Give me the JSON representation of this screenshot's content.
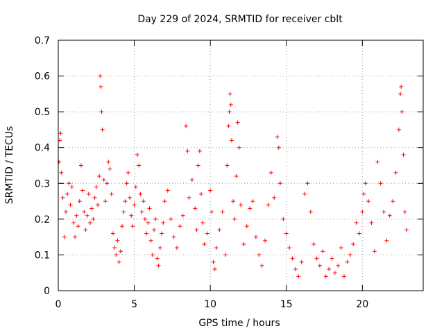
{
  "chart_data": {
    "type": "scatter",
    "title": "Day 229 of 2024, SRMTID for receiver cblt",
    "xlabel": "GPS time / hours",
    "ylabel": "SRMTID / TECUs",
    "xlim": [
      0,
      24
    ],
    "ylim": [
      0,
      0.7
    ],
    "x_ticks": [
      0,
      5,
      10,
      15,
      20
    ],
    "x_tick_labels": [
      "0",
      "5",
      "10",
      "15",
      "20"
    ],
    "y_ticks": [
      0,
      0.1,
      0.2,
      0.3,
      0.4,
      0.5,
      0.6,
      0.7
    ],
    "y_tick_labels": [
      "0",
      "0.1",
      "0.2",
      "0.3",
      "0.4",
      "0.5",
      "0.6",
      "0.7"
    ],
    "grid": true,
    "marker": "+",
    "color": "#ff0000",
    "series": [
      {
        "name": "cblt",
        "points": [
          [
            0.05,
            0.36
          ],
          [
            0.1,
            0.42
          ],
          [
            0.15,
            0.44
          ],
          [
            0.2,
            0.33
          ],
          [
            0.3,
            0.26
          ],
          [
            0.4,
            0.15
          ],
          [
            0.5,
            0.22
          ],
          [
            0.6,
            0.27
          ],
          [
            0.7,
            0.3
          ],
          [
            0.8,
            0.24
          ],
          [
            0.9,
            0.29
          ],
          [
            1.0,
            0.19
          ],
          [
            1.1,
            0.15
          ],
          [
            1.2,
            0.21
          ],
          [
            1.3,
            0.18
          ],
          [
            1.4,
            0.25
          ],
          [
            1.5,
            0.35
          ],
          [
            1.6,
            0.28
          ],
          [
            1.7,
            0.22
          ],
          [
            1.8,
            0.17
          ],
          [
            1.9,
            0.21
          ],
          [
            2.0,
            0.27
          ],
          [
            2.1,
            0.19
          ],
          [
            2.2,
            0.23
          ],
          [
            2.3,
            0.2
          ],
          [
            2.4,
            0.26
          ],
          [
            2.5,
            0.29
          ],
          [
            2.6,
            0.24
          ],
          [
            2.7,
            0.32
          ],
          [
            2.75,
            0.6
          ],
          [
            2.8,
            0.57
          ],
          [
            2.85,
            0.5
          ],
          [
            2.9,
            0.45
          ],
          [
            3.0,
            0.31
          ],
          [
            3.1,
            0.25
          ],
          [
            3.2,
            0.3
          ],
          [
            3.3,
            0.36
          ],
          [
            3.4,
            0.34
          ],
          [
            3.5,
            0.27
          ],
          [
            3.6,
            0.16
          ],
          [
            3.7,
            0.12
          ],
          [
            3.8,
            0.1
          ],
          [
            3.9,
            0.14
          ],
          [
            4.0,
            0.08
          ],
          [
            4.1,
            0.11
          ],
          [
            4.2,
            0.18
          ],
          [
            4.3,
            0.22
          ],
          [
            4.4,
            0.25
          ],
          [
            4.5,
            0.3
          ],
          [
            4.6,
            0.33
          ],
          [
            4.7,
            0.26
          ],
          [
            4.8,
            0.21
          ],
          [
            4.9,
            0.18
          ],
          [
            5.0,
            0.24
          ],
          [
            5.1,
            0.29
          ],
          [
            5.2,
            0.38
          ],
          [
            5.3,
            0.35
          ],
          [
            5.4,
            0.27
          ],
          [
            5.5,
            0.22
          ],
          [
            5.6,
            0.25
          ],
          [
            5.7,
            0.2
          ],
          [
            5.8,
            0.16
          ],
          [
            5.9,
            0.19
          ],
          [
            6.0,
            0.23
          ],
          [
            6.1,
            0.14
          ],
          [
            6.2,
            0.1
          ],
          [
            6.3,
            0.17
          ],
          [
            6.4,
            0.2
          ],
          [
            6.5,
            0.09
          ],
          [
            6.6,
            0.07
          ],
          [
            6.7,
            0.12
          ],
          [
            6.8,
            0.16
          ],
          [
            6.9,
            0.19
          ],
          [
            7.0,
            0.25
          ],
          [
            7.2,
            0.28
          ],
          [
            7.4,
            0.2
          ],
          [
            7.6,
            0.15
          ],
          [
            7.8,
            0.12
          ],
          [
            8.0,
            0.18
          ],
          [
            8.2,
            0.21
          ],
          [
            8.4,
            0.46
          ],
          [
            8.5,
            0.39
          ],
          [
            8.6,
            0.26
          ],
          [
            8.8,
            0.31
          ],
          [
            9.0,
            0.23
          ],
          [
            9.1,
            0.17
          ],
          [
            9.2,
            0.35
          ],
          [
            9.3,
            0.39
          ],
          [
            9.4,
            0.27
          ],
          [
            9.5,
            0.19
          ],
          [
            9.6,
            0.13
          ],
          [
            9.8,
            0.16
          ],
          [
            10.0,
            0.28
          ],
          [
            10.1,
            0.22
          ],
          [
            10.2,
            0.08
          ],
          [
            10.3,
            0.06
          ],
          [
            10.4,
            0.12
          ],
          [
            10.6,
            0.17
          ],
          [
            10.8,
            0.22
          ],
          [
            11.0,
            0.1
          ],
          [
            11.1,
            0.35
          ],
          [
            11.2,
            0.46
          ],
          [
            11.25,
            0.5
          ],
          [
            11.3,
            0.55
          ],
          [
            11.35,
            0.52
          ],
          [
            11.4,
            0.42
          ],
          [
            11.5,
            0.25
          ],
          [
            11.6,
            0.2
          ],
          [
            11.7,
            0.32
          ],
          [
            11.8,
            0.47
          ],
          [
            11.9,
            0.4
          ],
          [
            12.0,
            0.24
          ],
          [
            12.2,
            0.13
          ],
          [
            12.4,
            0.18
          ],
          [
            12.6,
            0.23
          ],
          [
            12.8,
            0.25
          ],
          [
            13.0,
            0.15
          ],
          [
            13.2,
            0.1
          ],
          [
            13.4,
            0.07
          ],
          [
            13.6,
            0.14
          ],
          [
            13.8,
            0.24
          ],
          [
            14.0,
            0.33
          ],
          [
            14.2,
            0.26
          ],
          [
            14.4,
            0.43
          ],
          [
            14.5,
            0.4
          ],
          [
            14.6,
            0.3
          ],
          [
            14.8,
            0.2
          ],
          [
            15.0,
            0.16
          ],
          [
            15.2,
            0.12
          ],
          [
            15.4,
            0.09
          ],
          [
            15.6,
            0.06
          ],
          [
            15.8,
            0.04
          ],
          [
            16.0,
            0.08
          ],
          [
            16.2,
            0.27
          ],
          [
            16.4,
            0.3
          ],
          [
            16.6,
            0.22
          ],
          [
            16.8,
            0.13
          ],
          [
            17.0,
            0.09
          ],
          [
            17.2,
            0.07
          ],
          [
            17.4,
            0.11
          ],
          [
            17.6,
            0.04
          ],
          [
            17.8,
            0.06
          ],
          [
            18.0,
            0.09
          ],
          [
            18.2,
            0.05
          ],
          [
            18.4,
            0.07
          ],
          [
            18.6,
            0.12
          ],
          [
            18.8,
            0.04
          ],
          [
            19.0,
            0.08
          ],
          [
            19.2,
            0.1
          ],
          [
            19.4,
            0.13
          ],
          [
            19.6,
            0.19
          ],
          [
            19.8,
            0.16
          ],
          [
            20.0,
            0.22
          ],
          [
            20.1,
            0.27
          ],
          [
            20.2,
            0.3
          ],
          [
            20.4,
            0.25
          ],
          [
            20.6,
            0.19
          ],
          [
            20.8,
            0.11
          ],
          [
            21.0,
            0.36
          ],
          [
            21.2,
            0.3
          ],
          [
            21.4,
            0.22
          ],
          [
            21.6,
            0.14
          ],
          [
            21.8,
            0.21
          ],
          [
            22.0,
            0.25
          ],
          [
            22.2,
            0.33
          ],
          [
            22.4,
            0.45
          ],
          [
            22.5,
            0.55
          ],
          [
            22.55,
            0.57
          ],
          [
            22.6,
            0.5
          ],
          [
            22.7,
            0.38
          ],
          [
            22.8,
            0.22
          ],
          [
            22.9,
            0.17
          ]
        ]
      }
    ]
  }
}
